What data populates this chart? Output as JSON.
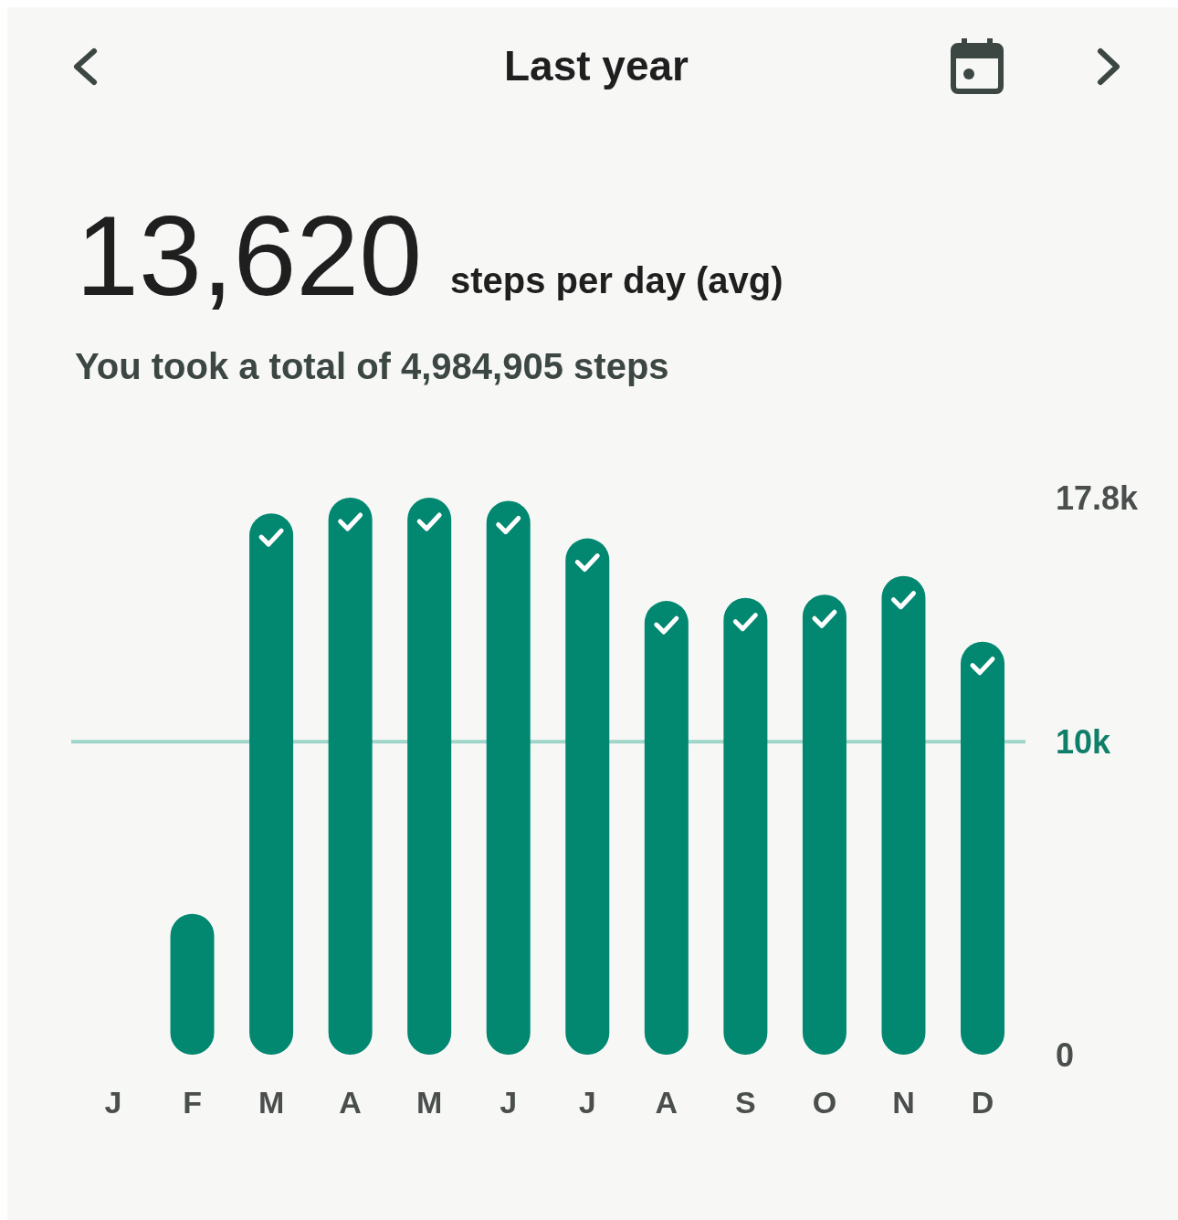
{
  "chart_data": {
    "type": "bar",
    "title": "Last year",
    "annotations": [
      "13,620",
      "steps per day (avg)",
      "You took a total of 4,984,905 steps"
    ],
    "categories": [
      "J",
      "F",
      "M",
      "A",
      "M",
      "J",
      "J",
      "A",
      "S",
      "O",
      "N",
      "D"
    ],
    "values": [
      null,
      4500,
      17300,
      17800,
      17800,
      17700,
      16500,
      14500,
      14600,
      14700,
      15300,
      13200
    ],
    "color": "#028771",
    "ylim": [
      0,
      17800
    ],
    "yticks": [
      0,
      {
        "value": 17800,
        "label": "17.8k"
      }
    ],
    "ref_lines": [
      {
        "axis": "y",
        "value": 10000,
        "label": "10k",
        "color": "#a0d5c9"
      }
    ],
    "grid": false
  }
}
